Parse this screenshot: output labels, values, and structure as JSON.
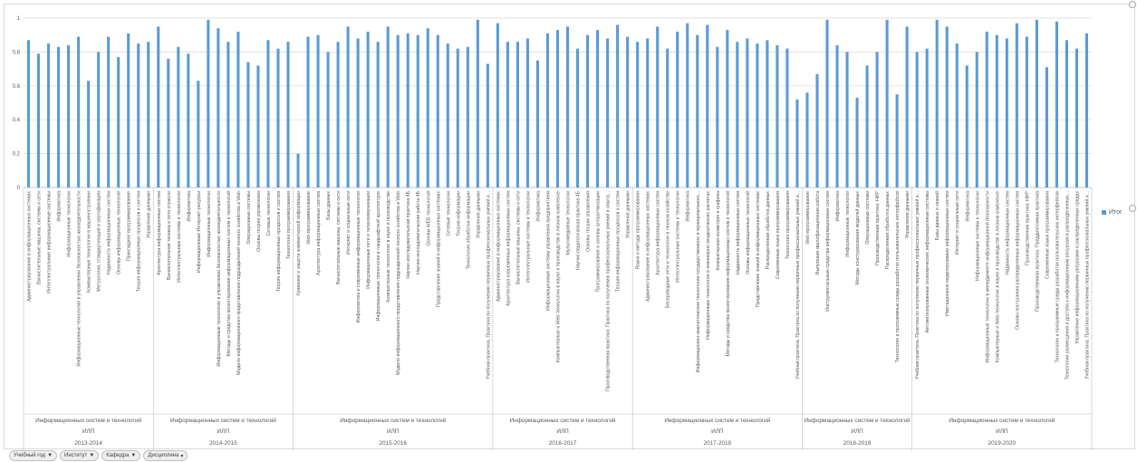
{
  "colors": {
    "bar": "#5b9bd5",
    "grid": "#d9d9d9",
    "axis": "#bfbfbf",
    "text": "#595959"
  },
  "legend": {
    "label": "Итог"
  },
  "filters": [
    {
      "label": "Учебный год",
      "icon": "filter-icon"
    },
    {
      "label": "Институт",
      "icon": "filter-icon"
    },
    {
      "label": "Кафедра",
      "icon": "filter-icon"
    },
    {
      "label": "Дисциплина",
      "icon": "dropdown-icon"
    }
  ],
  "chart_data": {
    "type": "bar",
    "ylim": [
      0,
      1
    ],
    "yticks": [
      "0",
      "0,2",
      "0,4",
      "0,6",
      "0,8",
      "1"
    ],
    "grid": true,
    "legend_position": "right",
    "series": [
      {
        "name": "Итог"
      }
    ],
    "groups": [
      {
        "year": "2013-2014",
        "institute": "ИЛП",
        "department": "Информационных систем и технологий",
        "categories": [
          "Администрирование в информационных системах",
          "Вычислительные машины, системы и сети",
          "Интеллектуальные информационные системы",
          "Информатика",
          "Информационные технологии",
          "Информационные технологии в управлении безопасностью жизнедеятельности",
          "Компьютерные технологии в машиностроении",
          "Метрология, стандартизация и сертификация",
          "Надежность информационных систем",
          "Основы информационных технологий",
          "Прикладное программирование",
          "Теория информационных процессов и систем",
          "Управление данными"
        ],
        "values": [
          0.87,
          0.79,
          0.85,
          0.83,
          0.84,
          0.89,
          0.63,
          0.8,
          0.89,
          0.77,
          0.91,
          0.85,
          0.86
        ]
      },
      {
        "year": "2014-2015",
        "institute": "ИЛП",
        "department": "Информационных систем и технологий",
        "categories": [
          "Архитектура информационных систем",
          "Вычислительная техника и сети отрасли",
          "Интеллектуальные системы и технологии",
          "Информатика",
          "Информационные Интернет-ресурсы",
          "Информационные технологии",
          "Информационные технологии в управлении безопасностью жизнедеятельности",
          "Методы и средства проектирования информационных систем и технологий",
          "Модели информационного представления подразделений лесного хозяйства в Web",
          "Операционные системы",
          "Основы теории управления",
          "Сетевые технологии",
          "Теория информационных процессов и систем",
          "Технологии программирования"
        ],
        "values": [
          0.95,
          0.76,
          0.83,
          0.79,
          0.63,
          0.99,
          0.94,
          0.86,
          0.92,
          0.74,
          0.72,
          0.87,
          0.82,
          0.86
        ]
      },
      {
        "year": "2015-2016",
        "institute": "ИЛП",
        "department": "Информационных систем и технологий",
        "categories": [
          "Хранение и защита компьютерной информации",
          "Web-программирование",
          "Архитектура информационных систем",
          "Базы данных",
          "Вычислительные машины, системы и сети",
          "Интернет и социальные сети",
          "Информатика и современные информационные технологии",
          "Информационные сети и телекоммуникации",
          "Информационные технологии в ландшафтной архитектуре",
          "Компьютерные технологии в науке и производстве",
          "Модели информационного представления подразделений лесного хозяйства в Web",
          "Научно-исследовательская практика 4Б",
          "Научно-исследовательская работа 4Б",
          "Основы WEB технологий",
          "Представление знаний в информационных системах",
          "Сетевые технологии",
          "Теория информации",
          "Технологии обработки информации",
          "Управление данными",
          "Учебная практика. Практика по получению первичных профессиональных умений и..."
        ],
        "values": [
          0.2,
          0.89,
          0.9,
          0.8,
          0.86,
          0.95,
          0.88,
          0.92,
          0.86,
          0.95,
          0.9,
          0.91,
          0.9,
          0.94,
          0.9,
          0.85,
          0.82,
          0.83,
          0.99,
          0.73
        ]
      },
      {
        "year": "2016-2017",
        "institute": "ИЛП",
        "department": "Информационных систем и технологий",
        "categories": [
          "Администрирование в информационных системах",
          "Архитектура современных информационных систем",
          "Вычислительные машины, системы и сети",
          "Интеллектуальные системы и технологии",
          "Информатика",
          "Информационные системы управления предприятием",
          "Компьютерные и Web-технологии в науке и производстве в лесном комплексе",
          "Мультимедийные технологии",
          "Научно-педагогическая практика 4Б",
          "Основы теории управления",
          "Программирование и основы алгоритмизации",
          "Производственная практика. Практика по получению профессиональных умений и опыта...",
          "Теория информационных процессов и систем",
          "Управление данными"
        ],
        "values": [
          0.97,
          0.86,
          0.86,
          0.88,
          0.75,
          0.91,
          0.93,
          0.95,
          0.82,
          0.9,
          0.93,
          0.88,
          0.96,
          0.89
        ]
      },
      {
        "year": "2017-2018",
        "institute": "ИЛП",
        "department": "Информационных систем и технологий",
        "categories": [
          "Языки и методы программирования",
          "Администрирование в информационных системах",
          "Архитектура информационных систем",
          "Беспроводные сети и технологии в лесном хозяйстве",
          "Интеллектуальные системы и технологии",
          "Информатика",
          "Информационно-аналитические технологии государственного и муниципального...",
          "Информационные технологии в инженерно-геодезических расчетах",
          "Компьютерная геометрия и графика",
          "Методы и средства проектирования информационных систем и технологий",
          "Надежность информационных систем",
          "Основы информационных технологий",
          "Представление знаний в информационных системах",
          "Распределенная обработка данных",
          "Современные языки программирования",
          "Технологии программирования",
          "Учебная практика. Практика по получению первичных профессиональных умений и..."
        ],
        "values": [
          0.86,
          0.88,
          0.95,
          0.82,
          0.92,
          0.97,
          0.9,
          0.96,
          0.83,
          0.93,
          0.86,
          0.88,
          0.85,
          0.87,
          0.84,
          0.82,
          0.52
        ]
      },
      {
        "year": "2018-2019",
        "institute": "ИЛП",
        "department": "Информационных систем и технологий",
        "categories": [
          "Web-программирование",
          "Выпускная квалификационная работа",
          "Инструментальные средства информационных систем",
          "Информатика",
          "Информационные технологии",
          "Методы конструирования моделей данных",
          "Операционные системы",
          "Производственная практика. НИР",
          "Распределенная обработка данных",
          "Технологии и программные среды разработки пользовательских интерфейсов",
          "Управление данными"
        ],
        "values": [
          0.56,
          0.67,
          0.99,
          0.84,
          0.8,
          0.53,
          0.72,
          0.8,
          0.99,
          0.55,
          0.95
        ]
      },
      {
        "year": "2019-2020",
        "institute": "ИЛП",
        "department": "Информационных систем и технологий",
        "categories": [
          "Учебная практика. Практика по получению первичных профессиональных умений и...",
          "Автоматизированные экономические информационные системы",
          "Базы данных и знаний",
          "Имитационное моделирование информационных систем",
          "Интернет и социальные сети",
          "Информатика",
          "Информационные системы и технологии",
          "Информационные технологии в менеджменте информационной безопасности",
          "Компьютерные и Web-технологии в науке и производстве в лесном комплексе",
          "Надежность информационных систем",
          "Основы построения распределенных информационных систем",
          "Производственная практика. НИР",
          "Производственная практика. Преддипломная практика",
          "Современные языки программирования",
          "Технологии и программные среды разработки пользовательских интерфейсов",
          "Технологии размещения и доступа к информационным ресурсам в распределенных...",
          "Управление информационными ресурсами в распределенных средах",
          "Учебная практика. Практика по получению первичных профессиональных умений и..."
        ],
        "values": [
          0.8,
          0.82,
          0.99,
          0.95,
          0.85,
          0.72,
          0.8,
          0.92,
          0.9,
          0.88,
          0.97,
          0.89,
          0.99,
          0.71,
          0.98,
          0.87,
          0.82,
          0.91
        ]
      }
    ]
  }
}
